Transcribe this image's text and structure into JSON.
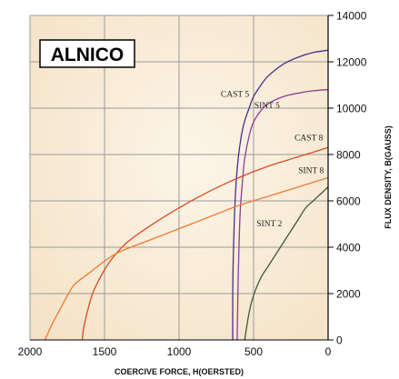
{
  "chart_data": {
    "type": "line",
    "title": "ALNICO",
    "xlabel": "COERCIVE FORCE, H(OERSTED)",
    "ylabel": "FLUX DENSITY, B(GAUSS)",
    "x_reversed": true,
    "xlim": [
      2000,
      0
    ],
    "ylim": [
      0,
      14000
    ],
    "xticks": [
      "2000",
      "1500",
      "1000",
      "500",
      "0"
    ],
    "yticks": [
      "0",
      "2000",
      "4000",
      "6000",
      "8000",
      "10000",
      "12000",
      "14000"
    ],
    "grid": true,
    "colors": {
      "grid_line": "#9a9a9a",
      "grid_bg": "#fdf3e4",
      "plot_bg": "#f7e8d0",
      "alnico_box_border": "#000000"
    },
    "series": [
      {
        "name": "CAST 5",
        "color": "#4a2f8a",
        "x": [
          640,
          640,
          638,
          630,
          620,
          600,
          570,
          530,
          500,
          450,
          400,
          300,
          200,
          100,
          0
        ],
        "y": [
          0,
          1500,
          3000,
          5000,
          6500,
          8000,
          9200,
          10000,
          10500,
          11000,
          11400,
          11900,
          12200,
          12400,
          12500
        ]
      },
      {
        "name": "SINT 5",
        "color": "#8a3f9a",
        "x": [
          610,
          605,
          600,
          590,
          575,
          560,
          530,
          500,
          450,
          400,
          300,
          200,
          100,
          0
        ],
        "y": [
          0,
          2000,
          3500,
          5500,
          6800,
          7800,
          8800,
          9400,
          9900,
          10200,
          10500,
          10650,
          10750,
          10800
        ]
      },
      {
        "name": "CAST 8",
        "color": "#d84b22",
        "x": [
          1650,
          1640,
          1620,
          1580,
          1520,
          1450,
          1350,
          1200,
          1000,
          800,
          600,
          400,
          200,
          0
        ],
        "y": [
          0,
          500,
          1100,
          2000,
          2800,
          3500,
          4200,
          4900,
          5700,
          6400,
          7000,
          7500,
          7900,
          8300
        ]
      },
      {
        "name": "SINT 8",
        "color": "#ee7a33",
        "x": [
          1900,
          1850,
          1800,
          1750,
          1700,
          1600,
          1500,
          1400,
          1200,
          1000,
          800,
          600,
          400,
          200,
          0
        ],
        "y": [
          0,
          700,
          1300,
          1900,
          2400,
          2900,
          3400,
          3800,
          4300,
          4800,
          5300,
          5800,
          6200,
          6600,
          7000
        ]
      },
      {
        "name": "SINT 2",
        "color": "#3e5a3a",
        "x": [
          560,
          550,
          535,
          515,
          490,
          450,
          400,
          350,
          300,
          250,
          200,
          150,
          100,
          50,
          0
        ],
        "y": [
          0,
          400,
          1000,
          1600,
          2100,
          2700,
          3200,
          3700,
          4200,
          4700,
          5200,
          5700,
          6000,
          6300,
          6600
        ]
      }
    ],
    "annotations": [
      {
        "text": "CAST 5",
        "x": 720,
        "y": 10500,
        "anchor": "start"
      },
      {
        "text": "SINT 5",
        "x": 495,
        "y": 10000,
        "anchor": "start"
      },
      {
        "text": "CAST 8",
        "x": 225,
        "y": 8600,
        "anchor": "start"
      },
      {
        "text": "SINT 8",
        "x": 200,
        "y": 7200,
        "anchor": "start"
      },
      {
        "text": "SINT 2",
        "x": 480,
        "y": 4900,
        "anchor": "start"
      }
    ]
  }
}
